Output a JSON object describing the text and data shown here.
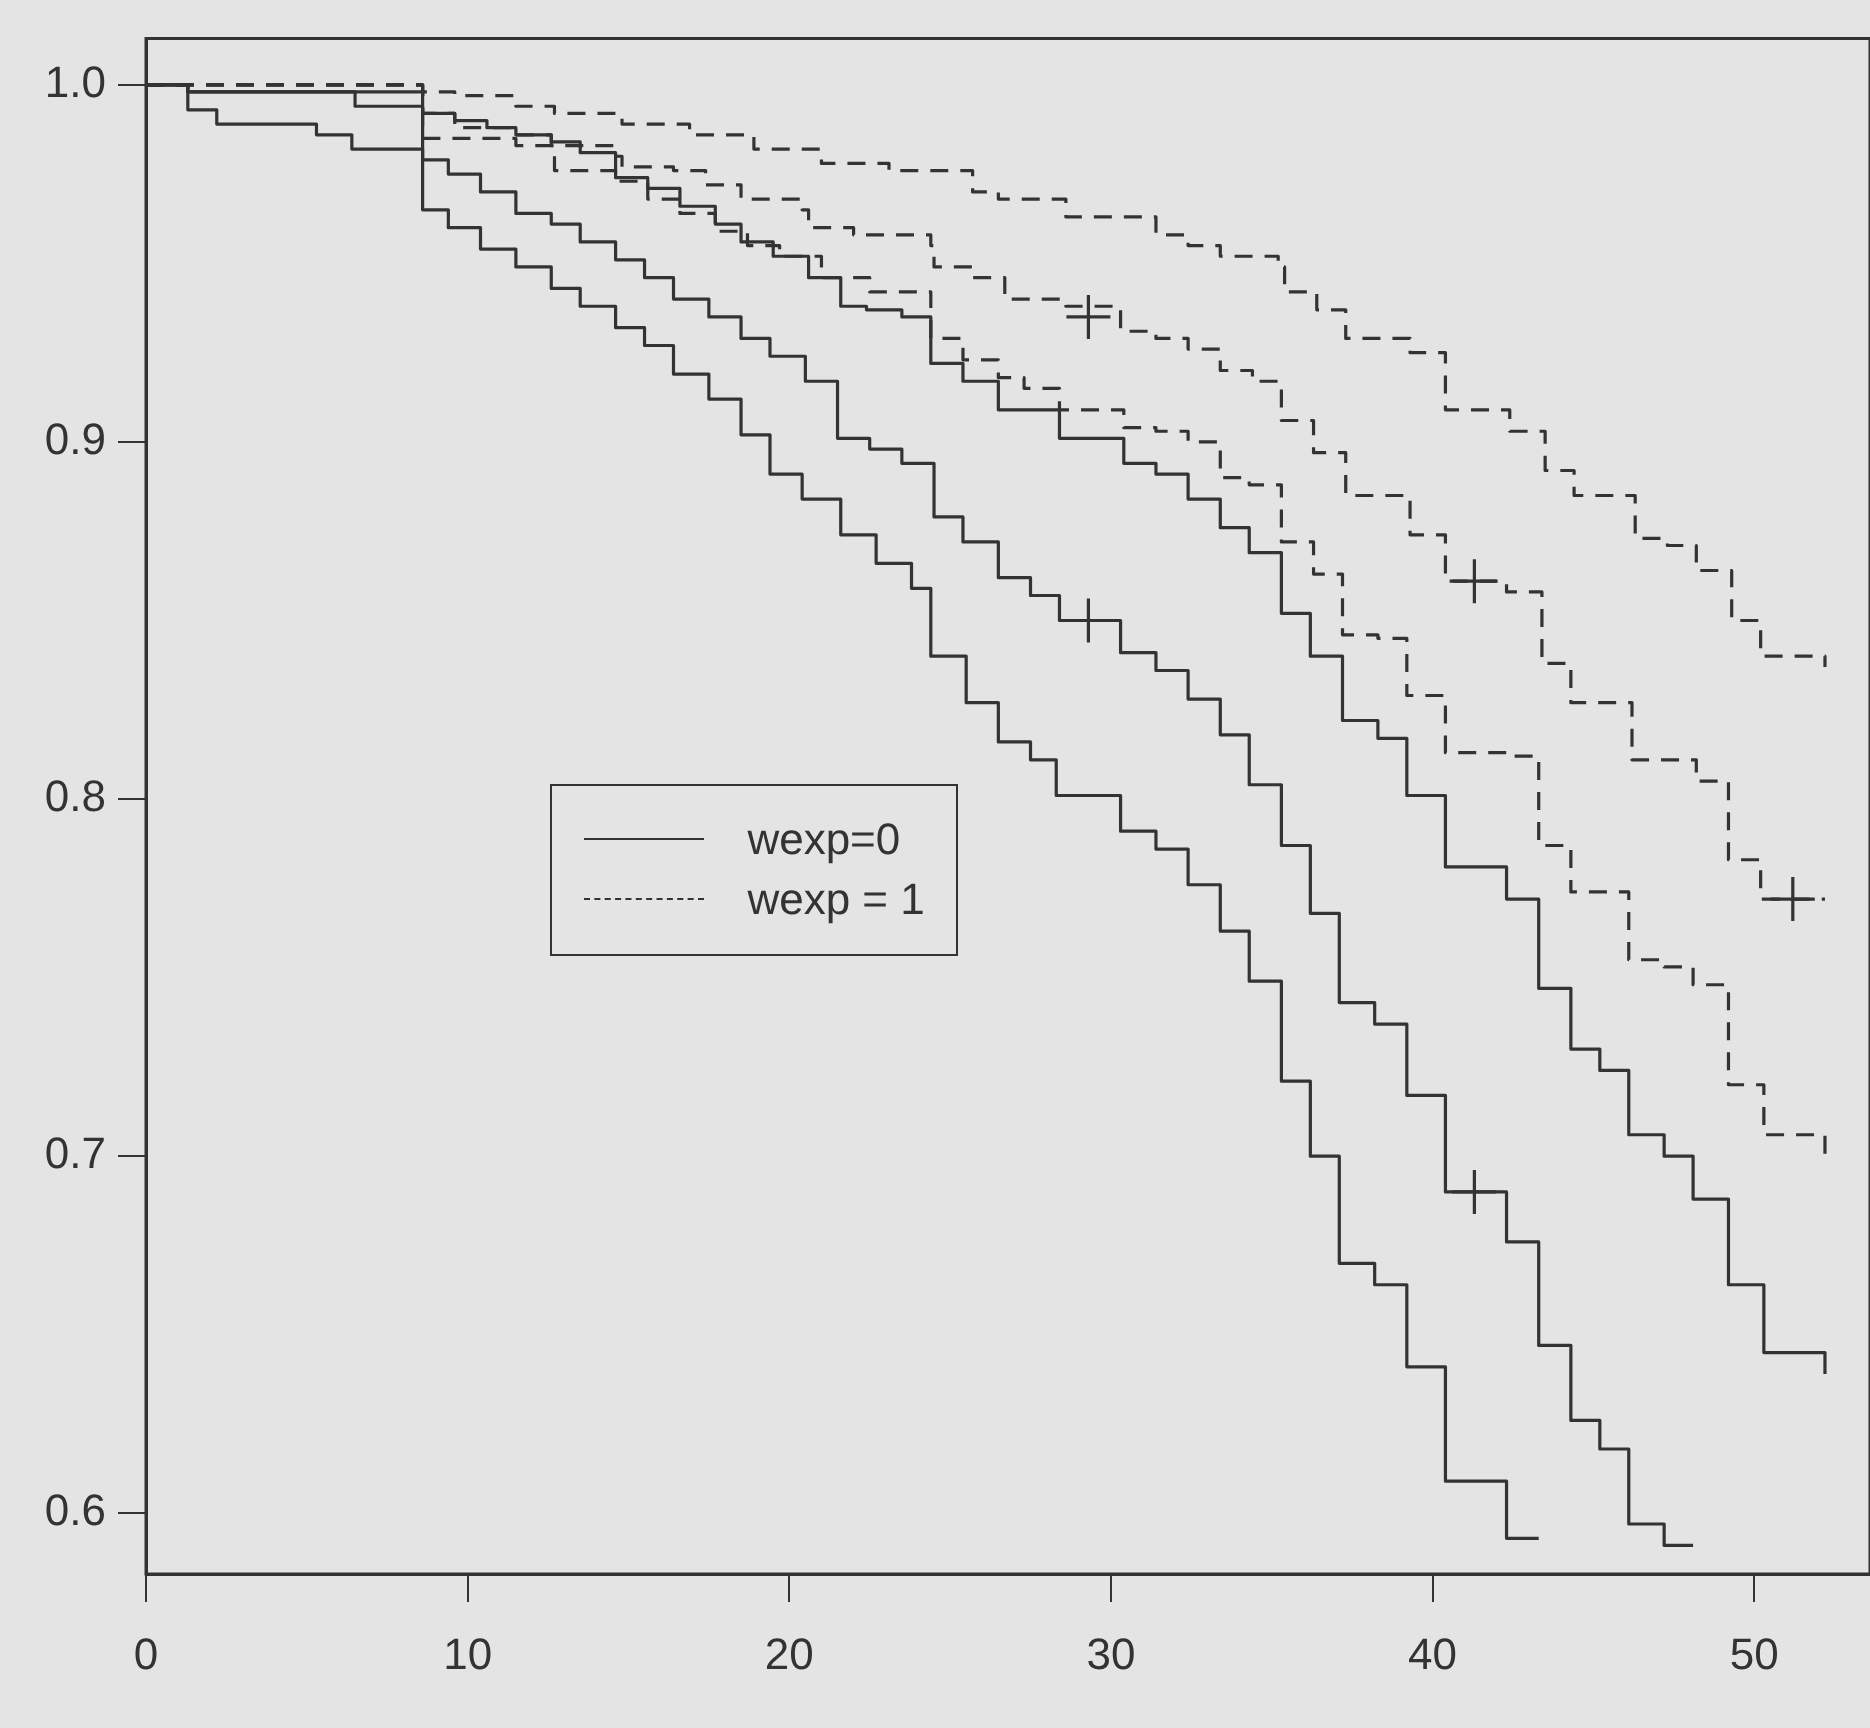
{
  "chart_data": {
    "type": "step",
    "xlim": [
      0,
      53.6
    ],
    "ylim": [
      0.583,
      1.013
    ],
    "xticks": [
      0,
      10,
      20,
      30,
      40,
      50
    ],
    "yticks": [
      0.6,
      0.7,
      0.8,
      0.9,
      {
        "value": 1.0,
        "label": "1.0"
      }
    ],
    "legend": "left",
    "series": [
      {
        "color": "#333333",
        "line_style": "solid",
        "x": [
          0,
          1.3,
          2.2,
          5.3,
          6.4,
          8.6,
          9.4,
          10.4,
          11.5,
          12.6,
          13.5,
          14.6,
          15.5,
          16.4,
          17.5,
          18.5,
          19.4,
          20.4,
          21.6,
          22.7,
          23.8,
          24.4,
          25.5,
          26.5,
          27.5,
          28.3,
          30.3,
          31.4,
          32.4,
          33.4,
          34.3,
          35.3,
          36.2,
          37.1,
          38.2,
          39.2,
          40.4,
          42.3,
          43.3
        ],
        "values": [
          1.0,
          0.993,
          0.989,
          0.986,
          0.982,
          0.965,
          0.96,
          0.954,
          0.949,
          0.943,
          0.938,
          0.932,
          0.927,
          0.919,
          0.912,
          0.902,
          0.891,
          0.884,
          0.874,
          0.866,
          0.859,
          0.84,
          0.827,
          0.816,
          0.811,
          0.801,
          0.791,
          0.786,
          0.776,
          0.763,
          0.749,
          0.721,
          0.7,
          0.67,
          0.664,
          0.641,
          0.609,
          0.593,
          0.593
        ]
      },
      {
        "color": "#333333",
        "line_style": "solid",
        "x": [
          0,
          1.3,
          8.6,
          9.4,
          10.4,
          11.5,
          12.6,
          13.5,
          14.6,
          15.5,
          16.4,
          17.5,
          18.5,
          19.4,
          20.5,
          21.5,
          22.5,
          23.5,
          24.5,
          25.4,
          26.5,
          27.5,
          28.4,
          30.3,
          31.4,
          32.4,
          33.4,
          34.3,
          35.3,
          36.2,
          37.1,
          38.2,
          39.2,
          40.4,
          42.3,
          43.3,
          44.3,
          45.2,
          46.1,
          47.2,
          48.1
        ],
        "values": [
          1.0,
          0.998,
          0.979,
          0.975,
          0.97,
          0.964,
          0.961,
          0.956,
          0.951,
          0.946,
          0.94,
          0.935,
          0.929,
          0.924,
          0.917,
          0.901,
          0.898,
          0.894,
          0.879,
          0.872,
          0.862,
          0.857,
          0.85,
          0.841,
          0.836,
          0.828,
          0.818,
          0.804,
          0.787,
          0.768,
          0.743,
          0.737,
          0.717,
          0.69,
          0.676,
          0.647,
          0.626,
          0.618,
          0.597,
          0.591,
          0.591
        ]
      },
      {
        "name": "wexp=0",
        "color": "#333333",
        "line_style": "solid",
        "x": [
          0,
          1.3,
          6.5,
          8.6,
          9.6,
          10.6,
          11.5,
          12.6,
          13.5,
          14.6,
          15.6,
          16.6,
          17.7,
          18.5,
          19.5,
          20.6,
          21.6,
          22.4,
          23.5,
          24.4,
          25.4,
          26.5,
          28.4,
          30.4,
          31.4,
          32.4,
          33.4,
          34.3,
          35.3,
          36.2,
          37.2,
          38.3,
          39.2,
          40.4,
          42.3,
          43.3,
          44.3,
          45.2,
          46.1,
          47.2,
          48.1,
          49.2,
          50.3,
          52.2
        ],
        "values": [
          1.0,
          0.998,
          0.994,
          0.992,
          0.99,
          0.988,
          0.986,
          0.984,
          0.981,
          0.974,
          0.971,
          0.966,
          0.961,
          0.956,
          0.952,
          0.946,
          0.938,
          0.937,
          0.935,
          0.922,
          0.917,
          0.909,
          0.901,
          0.894,
          0.891,
          0.884,
          0.876,
          0.869,
          0.852,
          0.84,
          0.822,
          0.817,
          0.801,
          0.781,
          0.772,
          0.747,
          0.73,
          0.724,
          0.706,
          0.7,
          0.688,
          0.664,
          0.645,
          0.639
        ]
      },
      {
        "name": "wexp = 1",
        "color": "#333333",
        "line_style": "dashed",
        "x": [
          0,
          8.6,
          9.6,
          11.5,
          12.7,
          14.8,
          16.9,
          18.9,
          21.0,
          23.1,
          25.7,
          26.5,
          28.6,
          31.4,
          32.4,
          33.4,
          35.2,
          35.4,
          36.4,
          37.3,
          39.3,
          40.4,
          42.4,
          43.5,
          44.4,
          46.3,
          47.3,
          48.2,
          49.3,
          50.2,
          52.2
        ],
        "values": [
          1.0,
          0.998,
          0.997,
          0.994,
          0.992,
          0.989,
          0.986,
          0.982,
          0.978,
          0.976,
          0.97,
          0.968,
          0.963,
          0.958,
          0.955,
          0.952,
          0.949,
          0.942,
          0.937,
          0.929,
          0.925,
          0.909,
          0.903,
          0.892,
          0.885,
          0.873,
          0.871,
          0.864,
          0.85,
          0.84,
          0.837
        ]
      },
      {
        "color": "#333333",
        "line_style": "dashed",
        "x": [
          0,
          8.6,
          9.6,
          11.5,
          12.6,
          14.6,
          14.8,
          16.4,
          17.4,
          18.5,
          20.4,
          20.6,
          22.0,
          24.4,
          24.5,
          25.7,
          26.7,
          28.6,
          30.3,
          31.4,
          32.4,
          33.4,
          34.4,
          35.3,
          36.3,
          37.3,
          39.3,
          40.4,
          42.3,
          43.4,
          44.3,
          46.2,
          48.2,
          49.2,
          50.2,
          52.2
        ],
        "values": [
          1.0,
          0.992,
          0.988,
          0.986,
          0.983,
          0.98,
          0.977,
          0.976,
          0.972,
          0.968,
          0.965,
          0.96,
          0.958,
          0.955,
          0.949,
          0.946,
          0.94,
          0.938,
          0.931,
          0.929,
          0.926,
          0.92,
          0.917,
          0.906,
          0.897,
          0.885,
          0.874,
          0.861,
          0.858,
          0.838,
          0.827,
          0.811,
          0.805,
          0.783,
          0.772,
          0.772
        ]
      },
      {
        "color": "#333333",
        "line_style": "dashed",
        "x": [
          0,
          8.6,
          11.5,
          12.7,
          14.6,
          15.6,
          16.6,
          17.7,
          18.7,
          19.7,
          21.0,
          22.5,
          24.4,
          25.4,
          26.5,
          27.3,
          28.4,
          30.4,
          31.4,
          32.4,
          33.4,
          34.3,
          35.3,
          36.3,
          37.2,
          38.3,
          39.2,
          40.4,
          42.3,
          43.3,
          44.3,
          46.1,
          47.2,
          48.1,
          49.2,
          50.3,
          52.2
        ],
        "values": [
          1.0,
          0.985,
          0.983,
          0.976,
          0.973,
          0.968,
          0.964,
          0.959,
          0.955,
          0.952,
          0.946,
          0.942,
          0.929,
          0.923,
          0.918,
          0.915,
          0.909,
          0.904,
          0.903,
          0.9,
          0.89,
          0.888,
          0.872,
          0.863,
          0.846,
          0.845,
          0.829,
          0.813,
          0.812,
          0.787,
          0.774,
          0.755,
          0.753,
          0.748,
          0.72,
          0.706,
          0.7
        ]
      },
      {
        "type": "scatter",
        "marker": "cross",
        "color": "#333333",
        "x": [
          29.3,
          41.3,
          29.3,
          41.3,
          51.2
        ],
        "values": [
          0.85,
          0.69,
          0.935,
          0.861,
          0.772
        ]
      }
    ]
  }
}
